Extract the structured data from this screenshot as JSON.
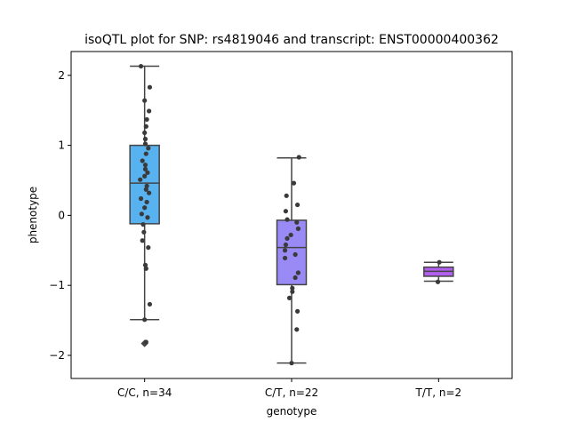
{
  "chart_data": {
    "type": "box",
    "title": "isoQTL plot for SNP: rs4819046 and transcript: ENST00000400362",
    "xlabel": "genotype",
    "ylabel": "phenotype",
    "ylim": [
      -2.33,
      2.34
    ],
    "yticks": [
      -2,
      -1,
      0,
      1,
      2
    ],
    "yticklabels": [
      "−2",
      "−1",
      "0",
      "1",
      "2"
    ],
    "grid": false,
    "categories": [
      "C/C, n=34",
      "C/T, n=22",
      "T/T, n=2"
    ],
    "colors": [
      "#58b2ef",
      "#9a8af5",
      "#b25ff0"
    ],
    "boxes": [
      {
        "q1": -0.12,
        "median": 0.46,
        "q3": 1.0,
        "whisker_low": -1.49,
        "whisker_high": 2.13,
        "outliers": [
          -1.83
        ]
      },
      {
        "q1": -0.99,
        "median": -0.46,
        "q3": -0.07,
        "whisker_low": -2.11,
        "whisker_high": 0.82,
        "outliers": []
      },
      {
        "q1": -0.87,
        "median": -0.8,
        "q3": -0.74,
        "whisker_low": -0.94,
        "whisker_high": -0.67,
        "outliers": []
      }
    ],
    "points": [
      [
        {
          "x": -0.25,
          "y": 2.13
        },
        {
          "x": 0.35,
          "y": 1.83
        },
        {
          "x": 0.0,
          "y": 1.64
        },
        {
          "x": 0.3,
          "y": 1.49
        },
        {
          "x": 0.15,
          "y": 1.37
        },
        {
          "x": 0.1,
          "y": 1.27
        },
        {
          "x": 0.0,
          "y": 1.18
        },
        {
          "x": 0.05,
          "y": 1.09
        },
        {
          "x": 0.05,
          "y": 1.02
        },
        {
          "x": 0.25,
          "y": 0.96
        },
        {
          "x": 0.1,
          "y": 0.88
        },
        {
          "x": -0.15,
          "y": 0.78
        },
        {
          "x": 0.05,
          "y": 0.72
        },
        {
          "x": 0.05,
          "y": 0.66
        },
        {
          "x": 0.2,
          "y": 0.61
        },
        {
          "x": 0.0,
          "y": 0.56
        },
        {
          "x": -0.3,
          "y": 0.51
        },
        {
          "x": 0.15,
          "y": 0.42
        },
        {
          "x": 0.1,
          "y": 0.37
        },
        {
          "x": 0.3,
          "y": 0.32
        },
        {
          "x": -0.25,
          "y": 0.24
        },
        {
          "x": 0.15,
          "y": 0.19
        },
        {
          "x": 0.0,
          "y": 0.11
        },
        {
          "x": -0.2,
          "y": 0.02
        },
        {
          "x": 0.2,
          "y": -0.03
        },
        {
          "x": -0.1,
          "y": -0.13
        },
        {
          "x": -0.05,
          "y": -0.24
        },
        {
          "x": -0.15,
          "y": -0.36
        },
        {
          "x": 0.25,
          "y": -0.46
        },
        {
          "x": 0.05,
          "y": -0.71
        },
        {
          "x": 0.1,
          "y": -0.76
        },
        {
          "x": 0.35,
          "y": -1.27
        },
        {
          "x": 0.0,
          "y": -1.49
        },
        {
          "x": 0.1,
          "y": -1.81
        }
      ],
      [
        {
          "x": 0.5,
          "y": 0.83
        },
        {
          "x": 0.15,
          "y": 0.46
        },
        {
          "x": -0.35,
          "y": 0.28
        },
        {
          "x": 0.4,
          "y": 0.15
        },
        {
          "x": -0.4,
          "y": 0.06
        },
        {
          "x": -0.3,
          "y": -0.06
        },
        {
          "x": 0.35,
          "y": -0.1
        },
        {
          "x": 0.45,
          "y": -0.19
        },
        {
          "x": -0.05,
          "y": -0.28
        },
        {
          "x": -0.3,
          "y": -0.33
        },
        {
          "x": -0.4,
          "y": -0.42
        },
        {
          "x": -0.45,
          "y": -0.5
        },
        {
          "x": 0.25,
          "y": -0.56
        },
        {
          "x": -0.45,
          "y": -0.61
        },
        {
          "x": 0.45,
          "y": -0.82
        },
        {
          "x": 0.25,
          "y": -0.89
        },
        {
          "x": 0.05,
          "y": -1.04
        },
        {
          "x": 0.05,
          "y": -1.09
        },
        {
          "x": -0.15,
          "y": -1.18
        },
        {
          "x": 0.4,
          "y": -1.37
        },
        {
          "x": 0.35,
          "y": -1.63
        },
        {
          "x": 0.0,
          "y": -2.11
        }
      ],
      [
        {
          "x": 0.05,
          "y": -0.67
        },
        {
          "x": -0.05,
          "y": -0.95
        }
      ]
    ]
  }
}
